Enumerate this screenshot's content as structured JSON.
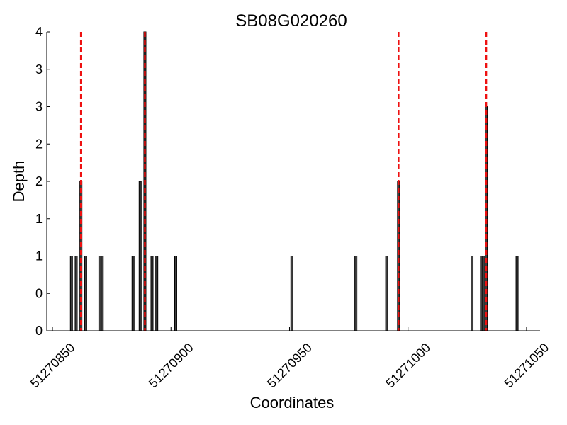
{
  "chart_data": {
    "type": "bar",
    "title": "SB08G020260",
    "x_label": "Coordinates",
    "y_label": "Depth",
    "x": [
      51270858,
      51270860,
      51270862,
      51270864,
      51270870,
      51270871,
      51270884,
      51270887,
      51270889,
      51270892,
      51270894,
      51270902,
      51270951,
      51270978,
      51270991,
      51270996,
      51271027,
      51271031,
      51271032,
      51271033,
      51271046
    ],
    "values": [
      1,
      1,
      2,
      1,
      1,
      1,
      1,
      2,
      4,
      1,
      1,
      1,
      1,
      1,
      1,
      2,
      1,
      1,
      1,
      3,
      1
    ],
    "color": "#404040",
    "vlines": [
      51270862,
      51270889,
      51270996,
      51271033
    ],
    "vline_color": "#ee1111",
    "xlim": [
      51270847.6,
      51271055.7
    ],
    "xticks": [
      51270850,
      51270900,
      51270950,
      51271000,
      51271050
    ],
    "ylim": [
      0,
      4
    ],
    "yticks": [
      0,
      {
        "value": 0.5,
        "label": "0"
      },
      1,
      {
        "value": 1.5,
        "label": "1"
      },
      2,
      {
        "value": 2.5,
        "label": "2"
      },
      3,
      {
        "value": 3.5,
        "label": "3"
      },
      4
    ],
    "grid": false
  }
}
